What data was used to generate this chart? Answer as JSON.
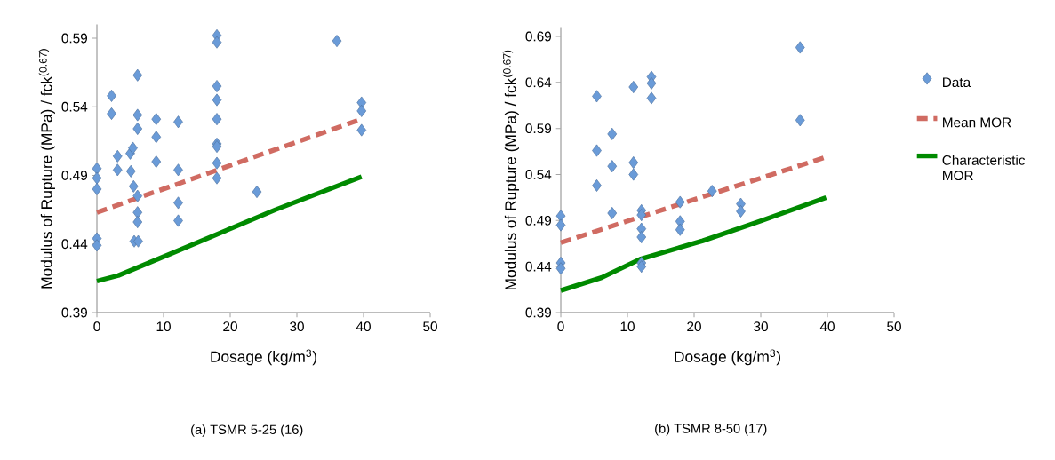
{
  "chart_data": [
    {
      "type": "scatter",
      "xlabel": "Dosage (kg/m$^{3}$)",
      "ylabel": "Modulus of Rupture (MPa) / fck$^{(0.67)}$",
      "annotations": [
        "(a) TSMR 5-25 (16)"
      ],
      "xlim": [
        0,
        50
      ],
      "xticks": [
        0,
        10,
        20,
        30,
        40,
        50
      ],
      "ylim": [
        0.39,
        0.6
      ],
      "yticks": [
        0.39,
        0.44,
        0.49,
        0.54,
        0.59
      ],
      "series": [
        {
          "marker": "diamond",
          "color": "#6a9bd8",
          "x": [
            0,
            0,
            0,
            0,
            0,
            2.2,
            2.2,
            3.1,
            3.1,
            5,
            5.4,
            5.1,
            5.5,
            6.1,
            6.1,
            6.1,
            5.6,
            6.2,
            6.1,
            6.1,
            6.1,
            8.9,
            8.9,
            8.9,
            12.2,
            12.2,
            12.2,
            12.2,
            18,
            18,
            18,
            18,
            18,
            18,
            18,
            18,
            18,
            24,
            36,
            39.7,
            39.7,
            39.7
          ],
          "values": [
            0.495,
            0.488,
            0.48,
            0.444,
            0.439,
            0.548,
            0.535,
            0.504,
            0.494,
            0.506,
            0.51,
            0.493,
            0.482,
            0.475,
            0.463,
            0.456,
            0.442,
            0.442,
            0.563,
            0.534,
            0.524,
            0.531,
            0.518,
            0.5,
            0.529,
            0.494,
            0.47,
            0.457,
            0.592,
            0.587,
            0.555,
            0.545,
            0.531,
            0.513,
            0.511,
            0.499,
            0.488,
            0.478,
            0.588,
            0.543,
            0.537,
            0.523
          ]
        },
        {
          "type": "line",
          "marker": "none",
          "line_style": "dashed",
          "color": "#d06b62",
          "x": [
            0,
            39.7
          ],
          "values": [
            0.463,
            0.531
          ]
        },
        {
          "type": "line",
          "marker": "none",
          "line_style": "solid",
          "color": "#008a00",
          "x": [
            0,
            3.2,
            12.1,
            26.8,
            39.7
          ],
          "values": [
            0.413,
            0.417,
            0.435,
            0.465,
            0.489
          ]
        }
      ]
    },
    {
      "type": "scatter",
      "xlabel": "Dosage (kg/m$^{3}$)",
      "ylabel": "Modulus of Rupture (MPa) / fck$^{(0.67)}$",
      "annotations": [
        "(b) TSMR 8-50 (17)"
      ],
      "legend": "right",
      "xlim": [
        0,
        50
      ],
      "xticks": [
        0,
        10,
        20,
        30,
        40,
        50
      ],
      "ylim": [
        0.39,
        0.7
      ],
      "yticks": [
        0.39,
        0.44,
        0.49,
        0.54,
        0.59,
        0.64,
        0.69
      ],
      "series": [
        {
          "name": "Data",
          "marker": "diamond",
          "color": "#6a9bd8",
          "x": [
            0,
            0,
            0,
            0,
            5.4,
            5.4,
            5.4,
            7.7,
            7.7,
            7.7,
            10.9,
            10.9,
            10.9,
            12.1,
            12.1,
            12.1,
            12.1,
            12.1,
            12.1,
            13.6,
            13.6,
            13.6,
            17.9,
            17.9,
            17.9,
            22.7,
            27,
            27,
            35.9,
            35.9
          ],
          "values": [
            0.495,
            0.485,
            0.444,
            0.438,
            0.625,
            0.566,
            0.528,
            0.584,
            0.549,
            0.498,
            0.635,
            0.553,
            0.54,
            0.501,
            0.496,
            0.481,
            0.472,
            0.444,
            0.44,
            0.646,
            0.639,
            0.623,
            0.51,
            0.489,
            0.48,
            0.522,
            0.508,
            0.5,
            0.678,
            0.599
          ]
        },
        {
          "name": "Mean MOR",
          "type": "line",
          "marker": "none",
          "line_style": "dashed",
          "color": "#d06b62",
          "x": [
            0,
            39.8
          ],
          "values": [
            0.466,
            0.559
          ]
        },
        {
          "name": "Characteristic MOR",
          "type": "line",
          "marker": "none",
          "line_style": "solid",
          "color": "#008a00",
          "x": [
            0,
            6.1,
            11.9,
            21.3,
            30.2,
            39.8
          ],
          "values": [
            0.414,
            0.428,
            0.448,
            0.468,
            0.49,
            0.515
          ]
        }
      ]
    }
  ]
}
